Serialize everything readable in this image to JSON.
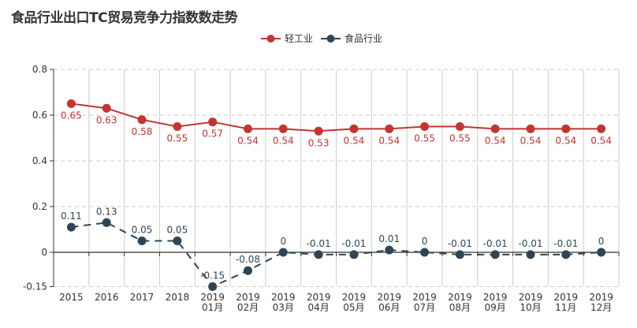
{
  "chart_data": {
    "type": "line",
    "title": "食品行业出口TC贸易竞争力指数数走势",
    "categories": [
      "2015",
      "2016",
      "2017",
      "2018",
      "2019\n01月",
      "2019\n02月",
      "2019\n03月",
      "2019\n04月",
      "2019\n05月",
      "2019\n06月",
      "2019\n07月",
      "2019\n08月",
      "2019\n09月",
      "2019\n10月",
      "2019\n11月",
      "2019\n12月"
    ],
    "series": [
      {
        "name": "轻工业",
        "color": "#c23531",
        "line_style": "solid",
        "label_position": "below",
        "values": [
          0.65,
          0.63,
          0.58,
          0.55,
          0.57,
          0.54,
          0.54,
          0.53,
          0.54,
          0.54,
          0.55,
          0.55,
          0.54,
          0.54,
          0.54,
          0.54
        ]
      },
      {
        "name": "食品行业",
        "color": "#2f4554",
        "line_style": "dashed",
        "label_position": "above",
        "values": [
          0.11,
          0.13,
          0.05,
          0.05,
          -0.15,
          -0.08,
          0,
          -0.01,
          -0.01,
          0.01,
          0,
          -0.01,
          -0.01,
          -0.01,
          -0.01,
          0
        ]
      }
    ],
    "xlabel": "",
    "ylabel": "",
    "ylim": [
      -0.15,
      0.8
    ],
    "yticks": [
      -0.15,
      0,
      0.2,
      0.4,
      0.6,
      0.8
    ],
    "ytick_labels": [
      "-0.15",
      "0",
      "0.2",
      "0.4",
      "0.6",
      "0.8"
    ],
    "grid": true,
    "legend_position": "top-center"
  }
}
